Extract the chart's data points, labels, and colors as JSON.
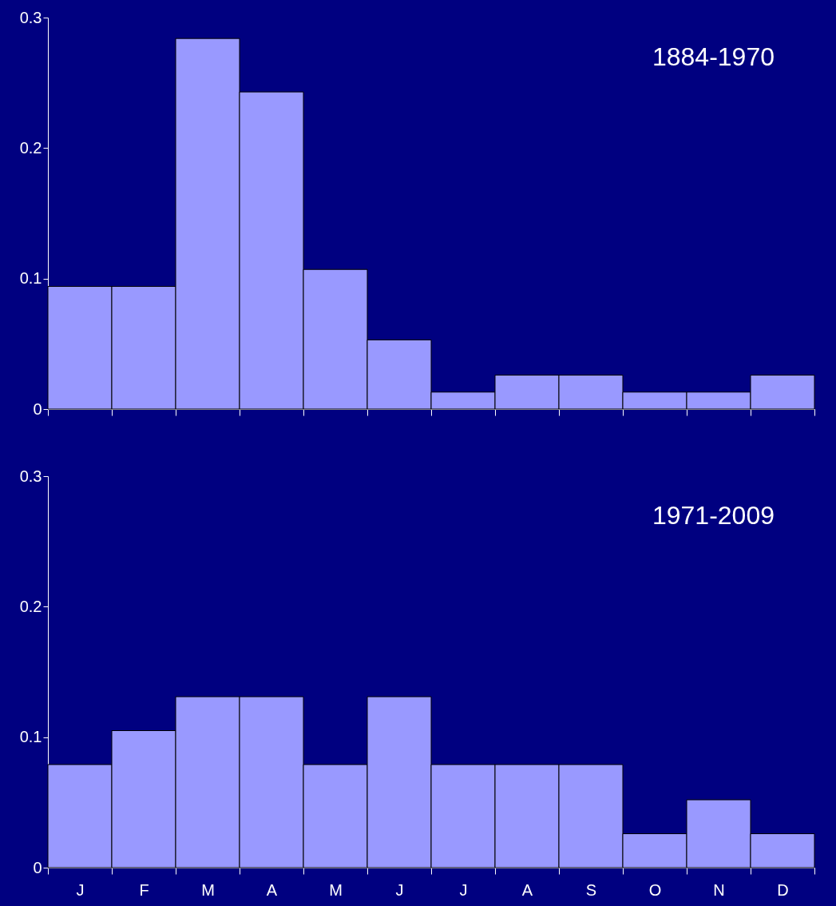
{
  "chart_data": [
    {
      "type": "bar",
      "annotations": [
        "1884-1970"
      ],
      "categories": [
        null,
        null,
        null,
        null,
        null,
        null,
        null,
        null,
        null,
        null,
        null,
        null
      ],
      "values": [
        0.094,
        0.094,
        0.284,
        0.243,
        0.107,
        0.053,
        0.013,
        0.026,
        0.026,
        0.013,
        0.013,
        0.026
      ],
      "color": "#9999ff",
      "ylim": [
        0,
        0.3
      ],
      "yticks": [
        0,
        0.1,
        0.2,
        0.3
      ]
    },
    {
      "type": "bar",
      "annotations": [
        "1971-2009"
      ],
      "categories": [
        "J",
        "F",
        "M",
        "A",
        "M",
        "J",
        "J",
        "A",
        "S",
        "O",
        "N",
        "D"
      ],
      "values": [
        0.079,
        0.105,
        0.131,
        0.131,
        0.079,
        0.131,
        0.079,
        0.079,
        0.079,
        0.026,
        0.052,
        0.026
      ],
      "color": "#9999ff",
      "ylim": [
        0,
        0.3
      ],
      "yticks": [
        0,
        0.1,
        0.2,
        0.3
      ]
    }
  ]
}
